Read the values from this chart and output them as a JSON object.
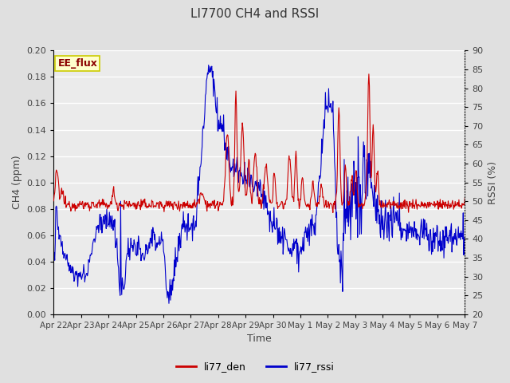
{
  "title": "LI7700 CH4 and RSSI",
  "xlabel": "Time",
  "ylabel_left": "CH4 (ppm)",
  "ylabel_right": "RSSI (%)",
  "site_label": "EE_flux",
  "legend_entries": [
    "li77_den",
    "li77_rssi"
  ],
  "legend_colors": [
    "#cc0000",
    "#0000cc"
  ],
  "ylim_left": [
    0.0,
    0.2
  ],
  "ylim_right": [
    20,
    90
  ],
  "yticks_left": [
    0.0,
    0.02,
    0.04,
    0.06,
    0.08,
    0.1,
    0.12,
    0.14,
    0.16,
    0.18,
    0.2
  ],
  "yticks_right": [
    20,
    25,
    30,
    35,
    40,
    45,
    50,
    55,
    60,
    65,
    70,
    75,
    80,
    85,
    90
  ],
  "xtick_labels": [
    "Apr 22",
    "Apr 23",
    "Apr 24",
    "Apr 25",
    "Apr 26",
    "Apr 27",
    "Apr 28",
    "Apr 29",
    "Apr 30",
    "May 1",
    "May 2",
    "May 3",
    "May 4",
    "May 5",
    "May 6",
    "May 7"
  ],
  "n_days": 16,
  "bg_color": "#e0e0e0",
  "plot_bg_color": "#ebebeb",
  "grid_color": "#ffffff",
  "title_color": "#333333",
  "axis_label_color": "#444444",
  "tick_label_color": "#444444",
  "site_label_color": "#8b0000",
  "site_label_bg": "#ffffcc",
  "site_label_edge": "#cccc00"
}
